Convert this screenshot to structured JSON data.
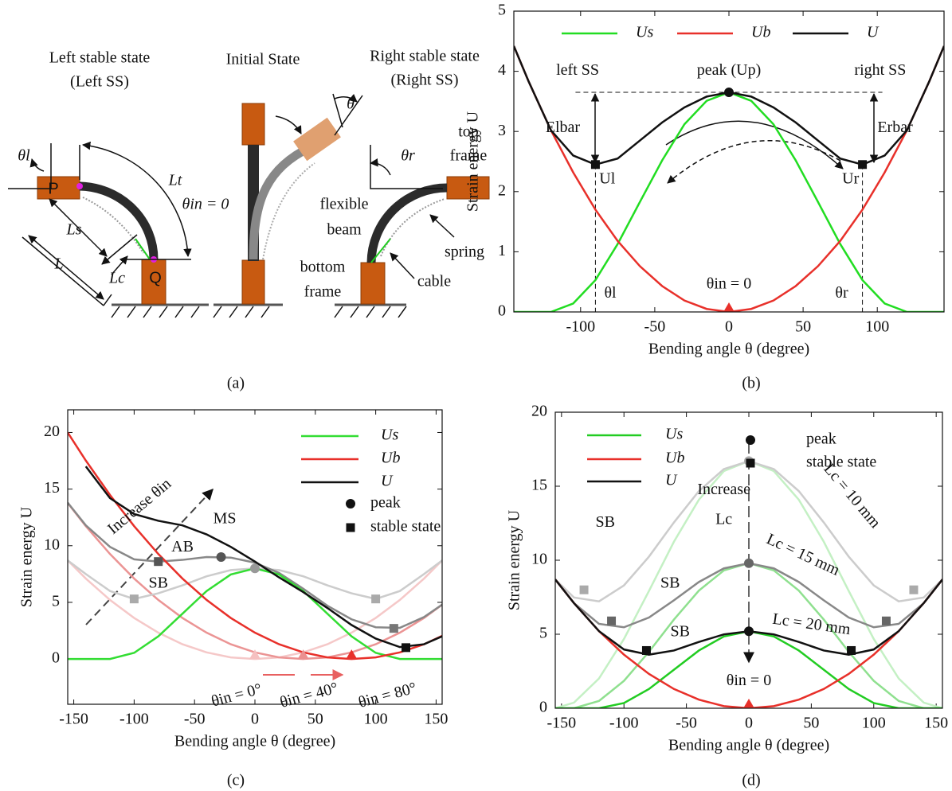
{
  "diagram": {
    "titles": [
      "Left stable state",
      "(Left SS)",
      "Initial State",
      "Right stable state",
      "(Right SS)"
    ],
    "labels": [
      "θl",
      "P",
      "Lt",
      "Ls",
      "L",
      "Lc",
      "Q",
      "θin = 0",
      "θ",
      "top",
      "frame",
      "θr",
      "flexible",
      "beam",
      "bottom",
      "frame",
      "spring",
      "cable"
    ]
  },
  "captions": [
    "(a)",
    "(b)",
    "(c)",
    "(d)"
  ],
  "chart_data": [
    {
      "type": "line",
      "x_label": "Bending angle θ (degree)",
      "y_label": "Strain energy U",
      "xlim": [
        -145,
        145
      ],
      "xticks": [
        -100,
        -50,
        0,
        50,
        100
      ],
      "ylim": [
        0,
        5
      ],
      "yticks": [
        0,
        1,
        2,
        3,
        4,
        5
      ],
      "legend": "top",
      "guides": true,
      "x": [
        -145,
        -135,
        -120,
        -105,
        -90,
        -75,
        -60,
        -45,
        -30,
        -15,
        0,
        15,
        30,
        45,
        60,
        75,
        90,
        105,
        120,
        135,
        145
      ],
      "series": [
        {
          "name": "Us",
          "color": "#22dd22",
          "values": [
            0,
            0,
            0,
            0.14,
            0.53,
            1.13,
            1.83,
            2.52,
            3.12,
            3.51,
            3.65,
            3.51,
            3.12,
            2.52,
            1.83,
            1.13,
            0.53,
            0.14,
            0,
            0,
            0
          ]
        },
        {
          "name": "Ub",
          "color": "#e8302a",
          "values": [
            4.42,
            3.83,
            3.02,
            2.32,
            1.7,
            1.18,
            0.76,
            0.43,
            0.19,
            0.05,
            0,
            0.05,
            0.19,
            0.43,
            0.76,
            1.18,
            1.7,
            2.32,
            3.02,
            3.83,
            4.42
          ]
        },
        {
          "name": "U",
          "color": "#111111",
          "values": [
            4.42,
            3.83,
            3.02,
            2.6,
            2.45,
            2.55,
            2.85,
            3.15,
            3.4,
            3.58,
            3.65,
            3.58,
            3.4,
            3.15,
            2.85,
            2.55,
            2.45,
            2.6,
            3.02,
            3.83,
            4.42
          ]
        }
      ],
      "markers": [
        {
          "x": 0,
          "y": 3.65,
          "shape": "circle",
          "color": "#111111"
        },
        {
          "x": -90,
          "y": 2.45,
          "shape": "square",
          "color": "#111111"
        },
        {
          "x": 90,
          "y": 2.45,
          "shape": "square",
          "color": "#111111"
        },
        {
          "x": 0,
          "y": 0,
          "shape": "triangle",
          "color": "#e8302a"
        }
      ],
      "annotations": [
        "left SS",
        "peak (Up)",
        "right SS",
        "Elbar",
        "Erbar",
        "Ul",
        "Ur",
        "θl",
        "θin = 0",
        "θr"
      ]
    },
    {
      "type": "line",
      "x_label": "Bending angle θ (degree)",
      "y_label": "Strain energy U",
      "xlim": [
        -155,
        155
      ],
      "xticks": [
        -150,
        -100,
        -50,
        0,
        50,
        100,
        150
      ],
      "ylim": [
        -4,
        22
      ],
      "yticks": [
        0,
        5,
        10,
        15,
        20
      ],
      "legend": "upper right",
      "x": [
        -155,
        -140,
        -120,
        -100,
        -80,
        -60,
        -40,
        -20,
        0,
        20,
        40,
        60,
        80,
        100,
        120,
        140,
        155
      ],
      "series": [
        {
          "color": "#f5c8c8",
          "values": [
            8.7,
            7.1,
            5.21,
            3.62,
            2.32,
            1.3,
            0.58,
            0.14,
            0,
            0.14,
            0.58,
            1.3,
            2.32,
            3.62,
            5.21,
            7.1,
            8.7
          ]
        },
        {
          "color": "#eb9494",
          "values": [
            13.77,
            11.73,
            9.27,
            7.1,
            5.21,
            3.62,
            2.32,
            1.3,
            0.58,
            0.14,
            0,
            0.14,
            0.58,
            1.3,
            2.32,
            3.62,
            4.79
          ]
        },
        {
          "color": "#cccccc",
          "values": [
            8.7,
            7.5,
            6.0,
            5.3,
            5.8,
            6.5,
            7.3,
            7.85,
            8.0,
            7.85,
            7.3,
            6.5,
            5.8,
            5.3,
            6.0,
            7.5,
            8.7
          ]
        },
        {
          "color": "#888888",
          "values": [
            13.8,
            11.8,
            9.9,
            8.8,
            8.6,
            8.75,
            9.0,
            8.95,
            8.5,
            7.6,
            6.2,
            4.7,
            3.5,
            2.8,
            2.75,
            3.7,
            4.8
          ]
        },
        {
          "name": "Us",
          "color": "#33dd33",
          "values": [
            0,
            0,
            0,
            0.54,
            2,
            4,
            6,
            7.46,
            8,
            7.46,
            6,
            4,
            2,
            0.54,
            0,
            0,
            0
          ]
        },
        {
          "name": "Ub",
          "color": "#e8302a",
          "values": [
            19.99,
            17.52,
            14.48,
            11.73,
            9.27,
            7.1,
            5.21,
            3.62,
            2.32,
            1.3,
            0.58,
            0.14,
            0,
            0.14,
            0.58,
            1.3,
            2.04
          ]
        },
        {
          "name": "U",
          "color": "#111111",
          "values": [
            null,
            17.0,
            14.2,
            12.8,
            12.2,
            11.8,
            11.0,
            9.9,
            8.6,
            7.2,
            5.9,
            4.5,
            3.0,
            1.8,
            1.05,
            1.3,
            2.0
          ]
        }
      ],
      "marker_legend": [
        {
          "name": "peak",
          "shape": "circle"
        },
        {
          "name": "stable state",
          "shape": "square"
        }
      ],
      "markers": [
        {
          "x": -28,
          "y": 9.0,
          "shape": "circle",
          "color": "#555555"
        },
        {
          "x": 0,
          "y": 8.0,
          "shape": "circle",
          "color": "#999999"
        },
        {
          "x": -80,
          "y": 8.6,
          "shape": "square",
          "color": "#555555"
        },
        {
          "x": -100,
          "y": 5.3,
          "shape": "square",
          "color": "#aaaaaa"
        },
        {
          "x": 100,
          "y": 5.3,
          "shape": "square",
          "color": "#aaaaaa"
        },
        {
          "x": 115,
          "y": 2.7,
          "shape": "square",
          "color": "#777777"
        },
        {
          "x": 125,
          "y": 1.0,
          "shape": "square",
          "color": "#111111"
        },
        {
          "x": 0,
          "y": 0,
          "shape": "triangle",
          "color": "#f5c0c0"
        },
        {
          "x": 40,
          "y": 0,
          "shape": "triangle",
          "color": "#eb9090"
        },
        {
          "x": 80,
          "y": 0,
          "shape": "triangle",
          "color": "#e8302a"
        }
      ],
      "annotations": [
        "Increase θin",
        "MS",
        "AB",
        "SB",
        "θin = 0°",
        "θin = 40°",
        "θin = 80°"
      ]
    },
    {
      "type": "line",
      "x_label": "Bending angle θ (degree)",
      "y_label": "Strain energy U",
      "xlim": [
        -155,
        155
      ],
      "xticks": [
        -150,
        -100,
        -50,
        0,
        50,
        100,
        150
      ],
      "ylim": [
        0,
        20
      ],
      "yticks": [
        0,
        5,
        10,
        15,
        20
      ],
      "legend": "upper left",
      "x": [
        -155,
        -140,
        -120,
        -100,
        -80,
        -60,
        -40,
        -20,
        0,
        20,
        40,
        60,
        80,
        100,
        120,
        140,
        155
      ],
      "series": [
        {
          "color": "#c4f0c4",
          "values": [
            0,
            0.38,
            2.01,
            4.68,
            7.92,
            11.25,
            14.09,
            16.02,
            16.7,
            16.02,
            14.09,
            11.25,
            7.92,
            4.68,
            2.01,
            0.38,
            0
          ]
        },
        {
          "color": "#8fe08f",
          "values": [
            0,
            0,
            0.49,
            1.85,
            3.81,
            5.99,
            7.95,
            9.31,
            9.8,
            9.31,
            7.95,
            5.99,
            3.81,
            1.85,
            0.49,
            0,
            0
          ]
        },
        {
          "color": "#cccccc",
          "values": [
            8.7,
            7.48,
            7.22,
            8.3,
            10.24,
            12.55,
            14.67,
            16.16,
            16.7,
            16.16,
            14.67,
            12.55,
            10.24,
            8.3,
            7.22,
            7.48,
            8.7
          ]
        },
        {
          "color": "#888888",
          "values": [
            8.7,
            7.1,
            5.7,
            5.47,
            6.13,
            7.29,
            8.53,
            9.45,
            9.8,
            9.45,
            8.53,
            7.29,
            6.13,
            5.47,
            5.7,
            7.1,
            8.7
          ]
        },
        {
          "name": "Us",
          "color": "#22cc22",
          "values": [
            0,
            0,
            0,
            0.35,
            1.3,
            2.6,
            3.9,
            4.85,
            5.2,
            4.85,
            3.9,
            2.6,
            1.3,
            0.35,
            0,
            0,
            0
          ]
        },
        {
          "name": "Ub",
          "color": "#e8302a",
          "values": [
            8.7,
            7.1,
            5.21,
            3.62,
            2.32,
            1.3,
            0.58,
            0.14,
            0,
            0.14,
            0.58,
            1.3,
            2.32,
            3.62,
            5.21,
            7.1,
            8.7
          ]
        },
        {
          "name": "U",
          "color": "#111111",
          "values": [
            8.7,
            7.1,
            5.21,
            3.97,
            3.62,
            3.9,
            4.48,
            4.99,
            5.2,
            4.99,
            4.48,
            3.9,
            3.62,
            3.97,
            5.21,
            7.1,
            8.7
          ]
        }
      ],
      "marker_legend": [
        {
          "name": "peak",
          "shape": "circle"
        },
        {
          "name": "stable state",
          "shape": "square"
        }
      ],
      "markers": [
        {
          "x": 0,
          "y": 16.7,
          "shape": "circle",
          "color": "#aaaaaa"
        },
        {
          "x": 0,
          "y": 9.8,
          "shape": "circle",
          "color": "#666666"
        },
        {
          "x": 0,
          "y": 5.2,
          "shape": "circle",
          "color": "#111111"
        },
        {
          "x": -132,
          "y": 8.0,
          "shape": "square",
          "color": "#aaaaaa"
        },
        {
          "x": 132,
          "y": 8.0,
          "shape": "square",
          "color": "#aaaaaa"
        },
        {
          "x": -110,
          "y": 5.9,
          "shape": "square",
          "color": "#666666"
        },
        {
          "x": 110,
          "y": 5.9,
          "shape": "square",
          "color": "#666666"
        },
        {
          "x": -82,
          "y": 3.9,
          "shape": "square",
          "color": "#111111"
        },
        {
          "x": 82,
          "y": 3.9,
          "shape": "square",
          "color": "#111111"
        },
        {
          "x": 0,
          "y": 0,
          "shape": "triangle",
          "color": "#e8302a"
        }
      ],
      "annotations": [
        "Lc = 10 mm",
        "Lc = 15 mm",
        "Lc = 20 mm",
        "SB",
        "SB",
        "SB",
        "Increase",
        "Lc",
        "θin = 0"
      ]
    }
  ]
}
